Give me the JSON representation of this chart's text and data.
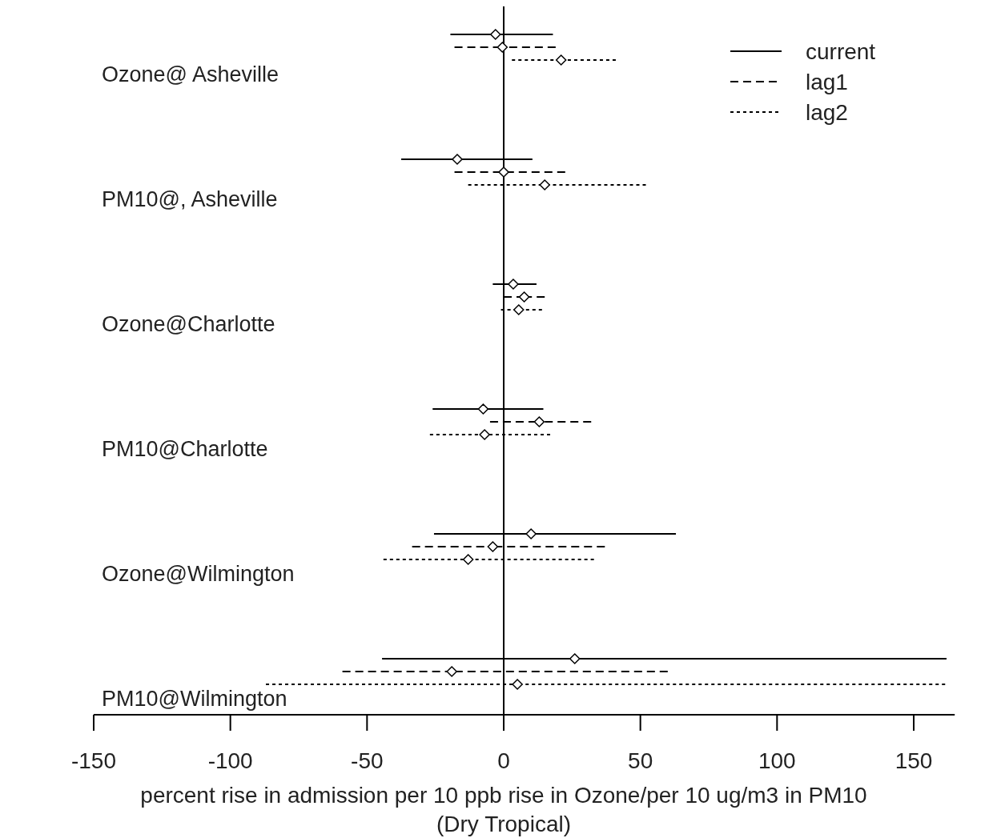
{
  "chart_data": {
    "type": "scatter",
    "orientation": "horizontal",
    "categories": [
      "Ozone@ Asheville",
      "PM10@, Asheville",
      "Ozone@Charlotte",
      "PM10@Charlotte",
      "Ozone@Wilmington",
      "PM10@Wilmington"
    ],
    "series": [
      {
        "name": "current",
        "color": "#000000",
        "line_style": "solid",
        "values": [
          -3,
          -17,
          3.5,
          -7.5,
          10,
          26
        ],
        "errors": [
          [
            -19.5,
            18
          ],
          [
            -37.5,
            10.5
          ],
          [
            -4,
            12
          ],
          [
            -26,
            14.5
          ],
          [
            -25.5,
            63
          ],
          [
            -44.5,
            162
          ]
        ]
      },
      {
        "name": "lag1",
        "color": "#000000",
        "line_style": "dashed",
        "values": [
          -0.5,
          0,
          7.5,
          13,
          -4,
          -19
        ],
        "errors": [
          [
            -18,
            19
          ],
          [
            -18,
            22.5
          ],
          [
            0,
            15
          ],
          [
            -5,
            32
          ],
          [
            -33.5,
            37
          ],
          [
            -59,
            60
          ]
        ]
      },
      {
        "name": "lag2",
        "color": "#000000",
        "line_style": "dotted",
        "values": [
          21,
          15,
          5.5,
          -7,
          -13,
          5
        ],
        "errors": [
          [
            3,
            41
          ],
          [
            -13,
            52
          ],
          [
            -1,
            14
          ],
          [
            -27,
            17
          ],
          [
            -44,
            33
          ],
          [
            -87,
            161.5
          ]
        ]
      }
    ],
    "xlabel": "percent rise in admission per 10 ppb rise in Ozone/per 10 ug/m3  in PM10\n(Dry Tropical)",
    "xlim": [
      -150,
      165
    ],
    "xticks": [
      -150,
      -100,
      -50,
      0,
      50,
      100,
      150
    ],
    "ref_lines": [
      {
        "axis": "x",
        "value": 0,
        "color": "#000000",
        "line_style": "solid"
      }
    ],
    "marker": "diamond",
    "legend": "top right"
  }
}
